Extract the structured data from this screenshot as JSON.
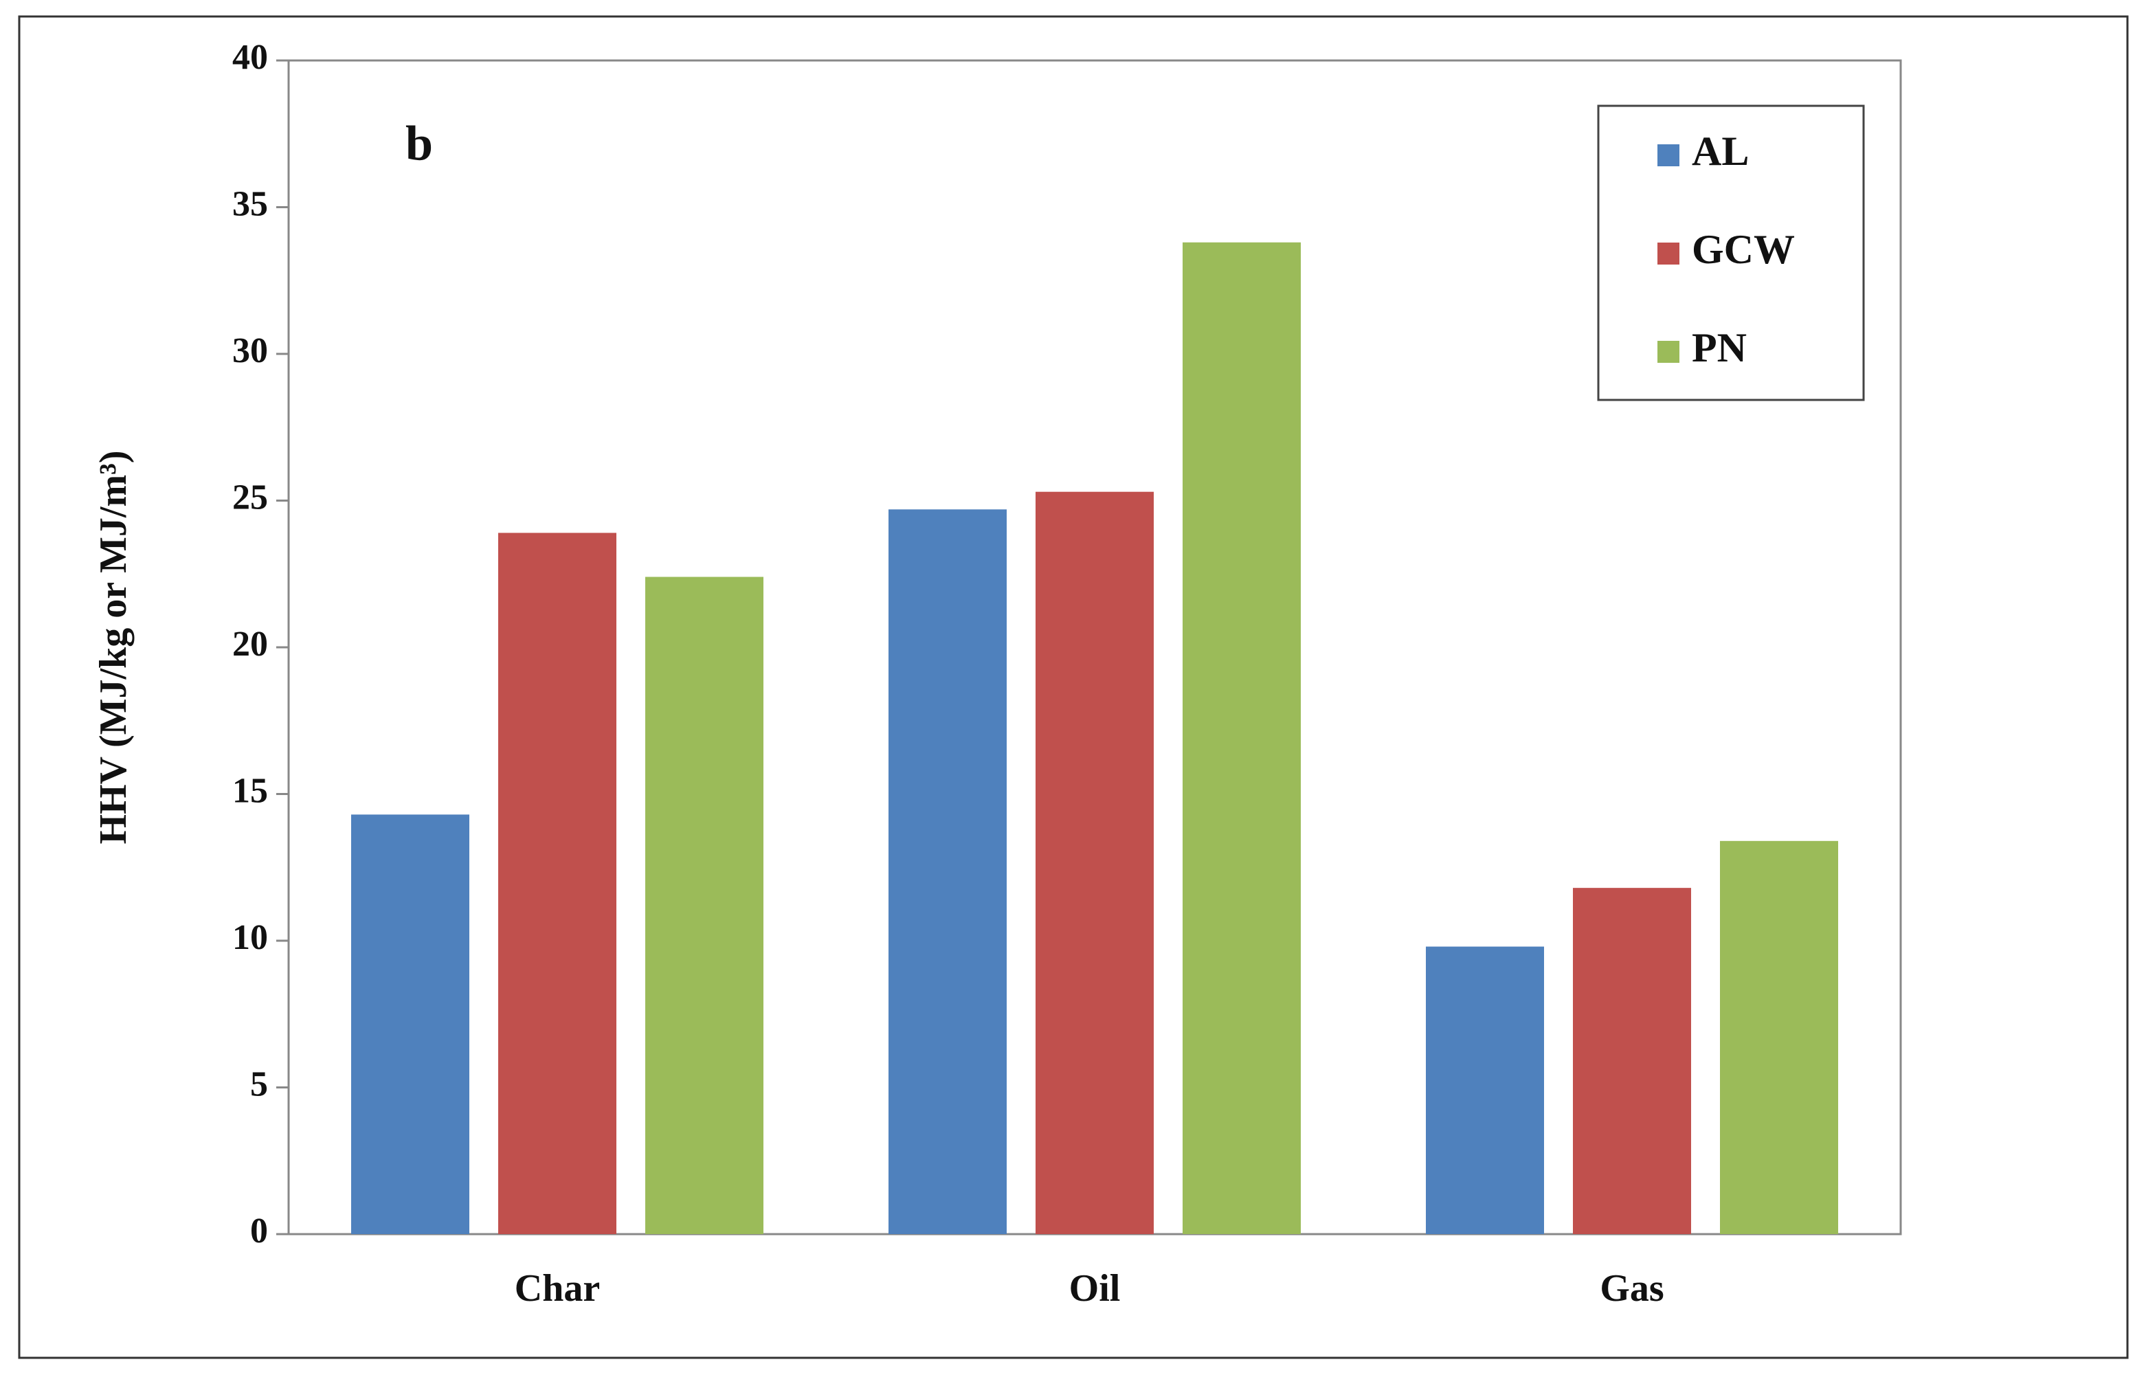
{
  "chart_data": {
    "type": "bar",
    "annotation": "b",
    "y_label": "HHV (MJ/kg or MJ/m³)",
    "categories": [
      "Char",
      "Oil",
      "Gas"
    ],
    "series": [
      {
        "name": "AL",
        "color": "#4f81bd",
        "values": [
          14.3,
          24.7,
          9.8
        ]
      },
      {
        "name": "GCW",
        "color": "#c0504d",
        "values": [
          23.9,
          25.3,
          11.8
        ]
      },
      {
        "name": "PN",
        "color": "#9bbb59",
        "values": [
          22.4,
          33.8,
          13.4
        ]
      }
    ],
    "ylim": [
      0,
      40
    ],
    "yticks": [
      0,
      5,
      10,
      15,
      20,
      25,
      30,
      35,
      40
    ],
    "grid": false,
    "legend": "upper right"
  }
}
